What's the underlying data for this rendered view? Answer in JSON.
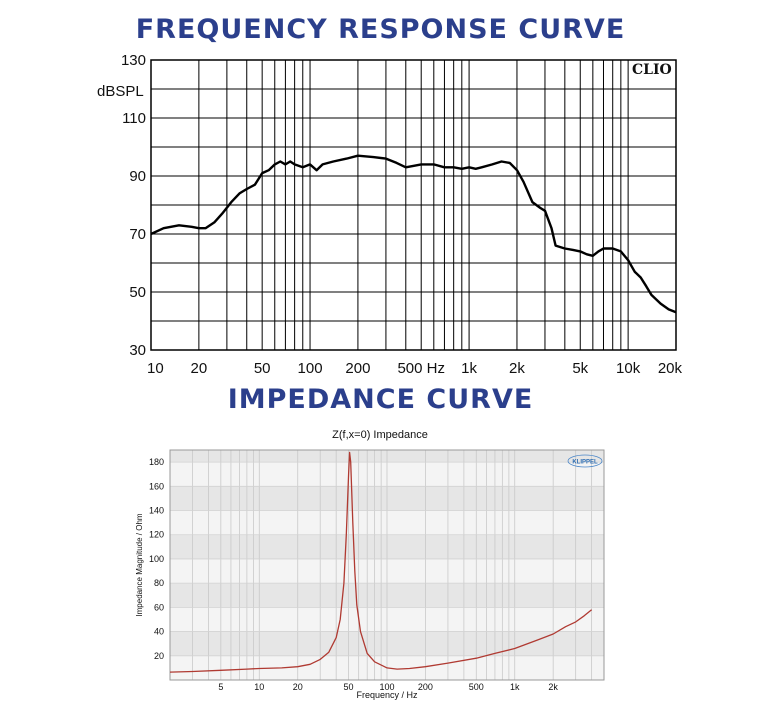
{
  "chart_data": [
    {
      "type": "line",
      "title": "FREQUENCY RESPONSE CURVE",
      "ylabel": "dBSPL",
      "xlabel": "",
      "watermark": "CLIO",
      "x_scale": "log",
      "xlim": [
        10,
        20000
      ],
      "ylim": [
        30,
        130
      ],
      "grid": true,
      "x_tick_labels": [
        {
          "x": 10,
          "label": "10"
        },
        {
          "x": 20,
          "label": "20"
        },
        {
          "x": 50,
          "label": "50"
        },
        {
          "x": 100,
          "label": "100"
        },
        {
          "x": 200,
          "label": "200"
        },
        {
          "x": 500,
          "label": "500 Hz"
        },
        {
          "x": 1000,
          "label": "1k"
        },
        {
          "x": 2000,
          "label": "2k"
        },
        {
          "x": 5000,
          "label": "5k"
        },
        {
          "x": 10000,
          "label": "10k"
        },
        {
          "x": 20000,
          "label": "20k"
        }
      ],
      "y_tick_labels": [
        {
          "y": 130,
          "label": "130"
        },
        {
          "y": 110,
          "label": "110"
        },
        {
          "y": 90,
          "label": "90"
        },
        {
          "y": 70,
          "label": "70"
        },
        {
          "y": 50,
          "label": "50"
        },
        {
          "y": 30,
          "label": "30"
        }
      ],
      "series": [
        {
          "color": "#000000",
          "points": [
            [
              10,
              70
            ],
            [
              12,
              72
            ],
            [
              15,
              73
            ],
            [
              18,
              72.5
            ],
            [
              20,
              72
            ],
            [
              22,
              72
            ],
            [
              25,
              74
            ],
            [
              28,
              77
            ],
            [
              32,
              81
            ],
            [
              36,
              84
            ],
            [
              40,
              85.5
            ],
            [
              45,
              87
            ],
            [
              50,
              91
            ],
            [
              55,
              92
            ],
            [
              60,
              94
            ],
            [
              65,
              95
            ],
            [
              70,
              94
            ],
            [
              75,
              95
            ],
            [
              80,
              94
            ],
            [
              90,
              93
            ],
            [
              100,
              94
            ],
            [
              110,
              92
            ],
            [
              120,
              94
            ],
            [
              140,
              95
            ],
            [
              170,
              96
            ],
            [
              200,
              97
            ],
            [
              250,
              96.5
            ],
            [
              300,
              96
            ],
            [
              350,
              94.5
            ],
            [
              400,
              93
            ],
            [
              450,
              93.5
            ],
            [
              500,
              94
            ],
            [
              600,
              94
            ],
            [
              700,
              93
            ],
            [
              800,
              93
            ],
            [
              900,
              92.5
            ],
            [
              1000,
              93
            ],
            [
              1100,
              92.5
            ],
            [
              1200,
              93
            ],
            [
              1400,
              94
            ],
            [
              1600,
              95
            ],
            [
              1800,
              94.5
            ],
            [
              2000,
              92
            ],
            [
              2200,
              88
            ],
            [
              2500,
              81
            ],
            [
              2800,
              79
            ],
            [
              3000,
              78
            ],
            [
              3300,
              72
            ],
            [
              3500,
              66
            ],
            [
              4000,
              65
            ],
            [
              4500,
              64.5
            ],
            [
              5000,
              64
            ],
            [
              5500,
              63
            ],
            [
              6000,
              62.5
            ],
            [
              6500,
              64
            ],
            [
              7000,
              65
            ],
            [
              8000,
              65
            ],
            [
              9000,
              64
            ],
            [
              10000,
              61
            ],
            [
              11000,
              57
            ],
            [
              12000,
              55
            ],
            [
              13000,
              52
            ],
            [
              14000,
              49
            ],
            [
              16000,
              46
            ],
            [
              18000,
              44
            ],
            [
              20000,
              43
            ]
          ]
        }
      ]
    },
    {
      "type": "line",
      "title": "IMPEDANCE CURVE",
      "subtitle": "Z(f,x=0) Impedance",
      "xlabel": "Frequency / Hz",
      "ylabel": "Impedance Magnitude / Ohm",
      "watermark": "KLIPPEL",
      "x_scale": "log",
      "xlim": [
        2,
        5000
      ],
      "ylim": [
        0,
        190
      ],
      "grid": true,
      "x_tick_labels": [
        {
          "x": 5,
          "label": "5"
        },
        {
          "x": 10,
          "label": "10"
        },
        {
          "x": 20,
          "label": "20"
        },
        {
          "x": 50,
          "label": "50"
        },
        {
          "x": 100,
          "label": "100"
        },
        {
          "x": 200,
          "label": "200"
        },
        {
          "x": 500,
          "label": "500"
        },
        {
          "x": 1000,
          "label": "1k"
        },
        {
          "x": 2000,
          "label": "2k"
        }
      ],
      "y_tick_labels": [
        {
          "y": 20,
          "label": "20"
        },
        {
          "y": 40,
          "label": "40"
        },
        {
          "y": 60,
          "label": "60"
        },
        {
          "y": 80,
          "label": "80"
        },
        {
          "y": 100,
          "label": "100"
        },
        {
          "y": 120,
          "label": "120"
        },
        {
          "y": 140,
          "label": "140"
        },
        {
          "y": 160,
          "label": "160"
        },
        {
          "y": 180,
          "label": "180"
        }
      ],
      "series": [
        {
          "color": "#b03a32",
          "points": [
            [
              2,
              6.5
            ],
            [
              3,
              7
            ],
            [
              5,
              8
            ],
            [
              8,
              9
            ],
            [
              10,
              9.5
            ],
            [
              15,
              10
            ],
            [
              20,
              11
            ],
            [
              25,
              13
            ],
            [
              30,
              17
            ],
            [
              35,
              23
            ],
            [
              40,
              35
            ],
            [
              43,
              50
            ],
            [
              46,
              80
            ],
            [
              48,
              120
            ],
            [
              50,
              170
            ],
            [
              51,
              188
            ],
            [
              52,
              180
            ],
            [
              54,
              130
            ],
            [
              56,
              90
            ],
            [
              58,
              62
            ],
            [
              62,
              40
            ],
            [
              70,
              22
            ],
            [
              80,
              15
            ],
            [
              100,
              10
            ],
            [
              120,
              9
            ],
            [
              150,
              9.5
            ],
            [
              200,
              11
            ],
            [
              300,
              14
            ],
            [
              500,
              18
            ],
            [
              700,
              22
            ],
            [
              1000,
              26
            ],
            [
              1500,
              33
            ],
            [
              2000,
              38
            ],
            [
              2500,
              44
            ],
            [
              3000,
              48
            ],
            [
              3500,
              53
            ],
            [
              4000,
              58
            ]
          ]
        }
      ]
    }
  ]
}
